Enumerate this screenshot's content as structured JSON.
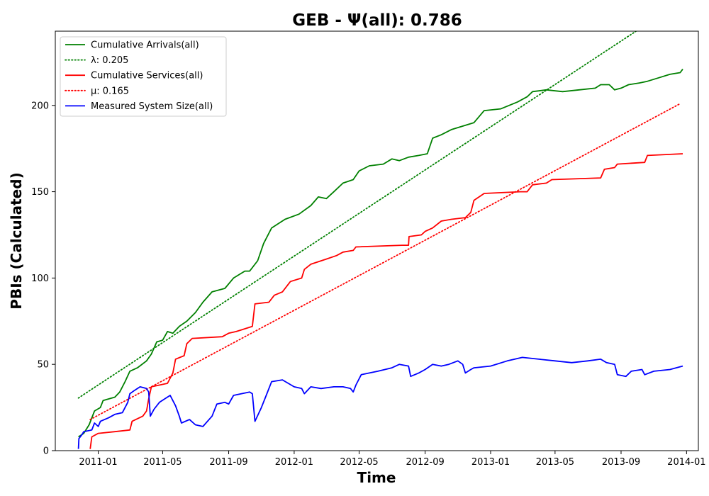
{
  "chart_data": {
    "type": "line",
    "title": "GEB -  Ψ(all): 0.786",
    "xlabel": "Time",
    "ylabel": "PBIs (Calculated)",
    "xlim": [
      "2010-10-13",
      "2014-01-23"
    ],
    "ylim": [
      0,
      243
    ],
    "x_ticks": [
      "2011-01",
      "2011-05",
      "2011-09",
      "2012-01",
      "2012-05",
      "2012-09",
      "2013-01",
      "2013-05",
      "2013-09",
      "2014-01"
    ],
    "y_ticks": [
      0,
      50,
      100,
      150,
      200
    ],
    "grid": false,
    "legend_position": "top-left",
    "series": [
      {
        "name": "Cumulative Arrivals(all)",
        "color": "#008000",
        "style": "solid",
        "points": [
          [
            "2010-11-25",
            8
          ],
          [
            "2010-12-05",
            10
          ],
          [
            "2010-12-15",
            15
          ],
          [
            "2010-12-25",
            23
          ],
          [
            "2011-01-05",
            25
          ],
          [
            "2011-01-10",
            29
          ],
          [
            "2011-02-01",
            31
          ],
          [
            "2011-02-10",
            34
          ],
          [
            "2011-02-20",
            40
          ],
          [
            "2011-03-01",
            46
          ],
          [
            "2011-03-15",
            48
          ],
          [
            "2011-04-01",
            52
          ],
          [
            "2011-04-10",
            56
          ],
          [
            "2011-04-20",
            63
          ],
          [
            "2011-05-01",
            64
          ],
          [
            "2011-05-10",
            69
          ],
          [
            "2011-05-20",
            68
          ],
          [
            "2011-06-01",
            72
          ],
          [
            "2011-06-15",
            75
          ],
          [
            "2011-07-01",
            80
          ],
          [
            "2011-07-15",
            86
          ],
          [
            "2011-08-01",
            92
          ],
          [
            "2011-08-25",
            94
          ],
          [
            "2011-09-10",
            100
          ],
          [
            "2011-10-01",
            104
          ],
          [
            "2011-10-10",
            104
          ],
          [
            "2011-10-25",
            110
          ],
          [
            "2011-11-05",
            120
          ],
          [
            "2011-11-20",
            129
          ],
          [
            "2011-12-15",
            134
          ],
          [
            "2012-01-10",
            137
          ],
          [
            "2012-02-01",
            142
          ],
          [
            "2012-02-15",
            147
          ],
          [
            "2012-03-01",
            146
          ],
          [
            "2012-03-15",
            150
          ],
          [
            "2012-04-01",
            155
          ],
          [
            "2012-04-20",
            157
          ],
          [
            "2012-05-01",
            162
          ],
          [
            "2012-05-20",
            165
          ],
          [
            "2012-06-15",
            166
          ],
          [
            "2012-07-01",
            169
          ],
          [
            "2012-07-15",
            168
          ],
          [
            "2012-08-01",
            170
          ],
          [
            "2012-08-20",
            171
          ],
          [
            "2012-09-05",
            172
          ],
          [
            "2012-09-15",
            181
          ],
          [
            "2012-10-01",
            183
          ],
          [
            "2012-10-20",
            186
          ],
          [
            "2012-11-10",
            188
          ],
          [
            "2012-12-01",
            190
          ],
          [
            "2012-12-20",
            197
          ],
          [
            "2013-01-20",
            198
          ],
          [
            "2013-02-20",
            202
          ],
          [
            "2013-03-10",
            205
          ],
          [
            "2013-03-20",
            208
          ],
          [
            "2013-04-15",
            209
          ],
          [
            "2013-05-15",
            208
          ],
          [
            "2013-06-15",
            209
          ],
          [
            "2013-07-15",
            210
          ],
          [
            "2013-07-25",
            212
          ],
          [
            "2013-08-10",
            212
          ],
          [
            "2013-08-20",
            209
          ],
          [
            "2013-09-01",
            210
          ],
          [
            "2013-09-15",
            212
          ],
          [
            "2013-10-05",
            213
          ],
          [
            "2013-10-20",
            214
          ],
          [
            "2013-11-10",
            216
          ],
          [
            "2013-12-01",
            218
          ],
          [
            "2013-12-20",
            219
          ],
          [
            "2013-12-25",
            221
          ]
        ]
      },
      {
        "name": "λ: 0.205",
        "color": "#008000",
        "style": "dotted",
        "points": [
          [
            "2010-11-25",
            30.5
          ],
          [
            "2013-12-20",
            259.8
          ]
        ]
      },
      {
        "name": "Cumulative Services(all)",
        "color": "#ff0000",
        "style": "solid",
        "points": [
          [
            "2010-12-17",
            1
          ],
          [
            "2010-12-20",
            8
          ],
          [
            "2011-01-01",
            10
          ],
          [
            "2011-02-01",
            11
          ],
          [
            "2011-03-01",
            12
          ],
          [
            "2011-03-05",
            17
          ],
          [
            "2011-03-25",
            20
          ],
          [
            "2011-04-01",
            23
          ],
          [
            "2011-04-05",
            30
          ],
          [
            "2011-04-10",
            37
          ],
          [
            "2011-05-10",
            39
          ],
          [
            "2011-05-20",
            45
          ],
          [
            "2011-05-25",
            53
          ],
          [
            "2011-06-10",
            55
          ],
          [
            "2011-06-15",
            62
          ],
          [
            "2011-06-25",
            65
          ],
          [
            "2011-08-20",
            66
          ],
          [
            "2011-09-01",
            68
          ],
          [
            "2011-09-15",
            69
          ],
          [
            "2011-09-25",
            70
          ],
          [
            "2011-10-15",
            72
          ],
          [
            "2011-10-20",
            85
          ],
          [
            "2011-11-15",
            86
          ],
          [
            "2011-11-25",
            90
          ],
          [
            "2011-12-10",
            92
          ],
          [
            "2011-12-25",
            98
          ],
          [
            "2012-01-15",
            100
          ],
          [
            "2012-01-20",
            105
          ],
          [
            "2012-02-01",
            108
          ],
          [
            "2012-03-01",
            111
          ],
          [
            "2012-03-20",
            113
          ],
          [
            "2012-04-01",
            115
          ],
          [
            "2012-04-20",
            116
          ],
          [
            "2012-04-25",
            118
          ],
          [
            "2012-07-20",
            119
          ],
          [
            "2012-08-01",
            119
          ],
          [
            "2012-08-02",
            124
          ],
          [
            "2012-08-25",
            125
          ],
          [
            "2012-09-01",
            127
          ],
          [
            "2012-09-15",
            129
          ],
          [
            "2012-10-01",
            133
          ],
          [
            "2012-10-20",
            134
          ],
          [
            "2012-11-15",
            135
          ],
          [
            "2012-11-25",
            138
          ],
          [
            "2012-12-01",
            145
          ],
          [
            "2012-12-20",
            149
          ],
          [
            "2013-02-25",
            150
          ],
          [
            "2013-03-10",
            150
          ],
          [
            "2013-03-20",
            154
          ],
          [
            "2013-04-15",
            155
          ],
          [
            "2013-04-25",
            157
          ],
          [
            "2013-07-25",
            158
          ],
          [
            "2013-08-01",
            163
          ],
          [
            "2013-08-20",
            164
          ],
          [
            "2013-08-25",
            166
          ],
          [
            "2013-10-15",
            167
          ],
          [
            "2013-10-20",
            171
          ],
          [
            "2013-12-25",
            172
          ]
        ]
      },
      {
        "name": "μ: 0.165",
        "color": "#ff0000",
        "style": "dotted",
        "points": [
          [
            "2010-12-17",
            18
          ],
          [
            "2013-12-20",
            201
          ]
        ]
      },
      {
        "name": "Measured System Size(all)",
        "color": "#0000ff",
        "style": "solid",
        "points": [
          [
            "2010-11-25",
            1
          ],
          [
            "2010-11-26",
            7
          ],
          [
            "2010-12-01",
            9
          ],
          [
            "2010-12-05",
            11
          ],
          [
            "2010-12-20",
            12
          ],
          [
            "2010-12-25",
            16
          ],
          [
            "2011-01-01",
            14
          ],
          [
            "2011-01-05",
            17
          ],
          [
            "2011-01-20",
            19
          ],
          [
            "2011-02-01",
            21
          ],
          [
            "2011-02-15",
            22
          ],
          [
            "2011-02-25",
            28
          ],
          [
            "2011-03-01",
            33
          ],
          [
            "2011-03-10",
            35
          ],
          [
            "2011-03-20",
            37
          ],
          [
            "2011-04-01",
            36
          ],
          [
            "2011-04-05",
            34
          ],
          [
            "2011-04-08",
            20
          ],
          [
            "2011-04-15",
            24
          ],
          [
            "2011-04-25",
            28
          ],
          [
            "2011-05-05",
            30
          ],
          [
            "2011-05-15",
            32
          ],
          [
            "2011-05-25",
            26
          ],
          [
            "2011-06-01",
            20
          ],
          [
            "2011-06-05",
            16
          ],
          [
            "2011-06-20",
            18
          ],
          [
            "2011-07-01",
            15
          ],
          [
            "2011-07-15",
            14
          ],
          [
            "2011-08-01",
            20
          ],
          [
            "2011-08-10",
            27
          ],
          [
            "2011-08-25",
            28
          ],
          [
            "2011-09-01",
            27
          ],
          [
            "2011-09-10",
            32
          ],
          [
            "2011-09-25",
            33
          ],
          [
            "2011-10-10",
            34
          ],
          [
            "2011-10-15",
            33
          ],
          [
            "2011-10-20",
            17
          ],
          [
            "2011-11-01",
            25
          ],
          [
            "2011-11-10",
            32
          ],
          [
            "2011-11-20",
            40
          ],
          [
            "2011-12-10",
            41
          ],
          [
            "2012-01-01",
            37
          ],
          [
            "2012-01-15",
            36
          ],
          [
            "2012-01-20",
            33
          ],
          [
            "2012-02-01",
            37
          ],
          [
            "2012-02-20",
            36
          ],
          [
            "2012-03-15",
            37
          ],
          [
            "2012-04-01",
            37
          ],
          [
            "2012-04-15",
            36
          ],
          [
            "2012-04-20",
            34
          ],
          [
            "2012-04-25",
            38
          ],
          [
            "2012-05-05",
            44
          ],
          [
            "2012-05-20",
            45
          ],
          [
            "2012-06-05",
            46
          ],
          [
            "2012-07-01",
            48
          ],
          [
            "2012-07-15",
            50
          ],
          [
            "2012-08-01",
            49
          ],
          [
            "2012-08-05",
            43
          ],
          [
            "2012-08-20",
            45
          ],
          [
            "2012-09-01",
            47
          ],
          [
            "2012-09-15",
            50
          ],
          [
            "2012-10-01",
            49
          ],
          [
            "2012-10-15",
            50
          ],
          [
            "2012-11-01",
            52
          ],
          [
            "2012-11-10",
            50
          ],
          [
            "2012-11-15",
            45
          ],
          [
            "2012-11-25",
            47
          ],
          [
            "2012-12-01",
            48
          ],
          [
            "2013-01-01",
            49
          ],
          [
            "2013-02-01",
            52
          ],
          [
            "2013-03-01",
            54
          ],
          [
            "2013-04-01",
            53
          ],
          [
            "2013-05-01",
            52
          ],
          [
            "2013-06-01",
            51
          ],
          [
            "2013-07-01",
            52
          ],
          [
            "2013-07-25",
            53
          ],
          [
            "2013-08-05",
            51
          ],
          [
            "2013-08-20",
            50
          ],
          [
            "2013-08-25",
            44
          ],
          [
            "2013-09-10",
            43
          ],
          [
            "2013-09-20",
            46
          ],
          [
            "2013-10-10",
            47
          ],
          [
            "2013-10-15",
            44
          ],
          [
            "2013-11-01",
            46
          ],
          [
            "2013-12-01",
            47
          ],
          [
            "2013-12-25",
            49
          ]
        ]
      }
    ]
  }
}
